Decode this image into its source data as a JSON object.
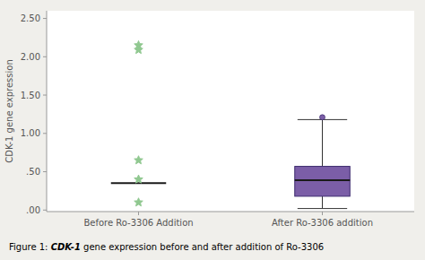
{
  "chart_data": {
    "type": "box",
    "caption": [
      "Figure 1: ",
      "CDK-1",
      " gene expression before and after addition of Ro-3306"
    ],
    "ylabel": "CDK-1 gene expression",
    "categories": [
      "Before Ro-3306 Addition",
      "After Ro-3306 addition"
    ],
    "ylim": [
      -0.02,
      2.6
    ],
    "yticks": [
      {
        "value": 0.0,
        "label": ".00"
      },
      {
        "value": 0.5,
        "label": ".50"
      },
      {
        "value": 1.0,
        "label": "1.00"
      },
      {
        "value": 1.5,
        "label": "1.50"
      },
      {
        "value": 2.0,
        "label": "2.00"
      },
      {
        "value": 2.5,
        "label": "2.50"
      }
    ],
    "grid": false,
    "boxes": [
      {
        "median": 0.35,
        "outliers": [
          2.09,
          2.15,
          0.65,
          0.4,
          0.1
        ],
        "color": "#90c890",
        "marker": "star"
      },
      {
        "q1": 0.18,
        "median": 0.39,
        "q3": 0.57,
        "whisker_low": 0.02,
        "whisker_high": 1.18,
        "outliers": [
          1.21
        ],
        "color": "#7b5ea7",
        "marker": "circle"
      }
    ]
  }
}
